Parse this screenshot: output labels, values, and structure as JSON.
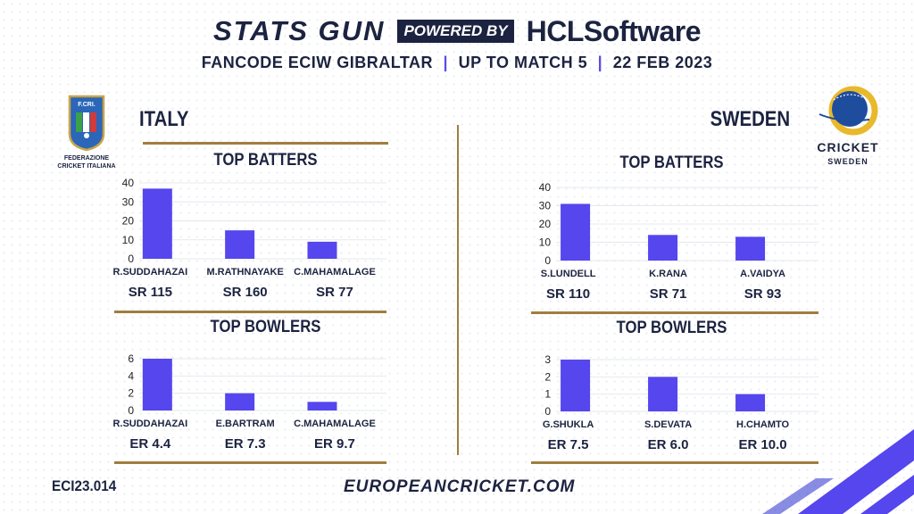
{
  "header": {
    "brand": "STATS GUN",
    "powered_by": "POWERED BY",
    "sponsor": "HCLSoftware",
    "subtitle_parts": [
      "FANCODE ECIW GIBRALTAR",
      "UP TO MATCH  5",
      "22 FEB 2023"
    ],
    "separator": "|"
  },
  "teams": {
    "left": {
      "name": "ITALY",
      "logo_text_1": "F.CRI.",
      "logo_text_2": "FEDERAZIONE",
      "logo_text_3": "CRICKET ITALIANA"
    },
    "right": {
      "name": "SWEDEN",
      "logo_text_1": "CRICKET",
      "logo_text_2": "SWEDEN"
    }
  },
  "sections": {
    "batters_title": "TOP BATTERS",
    "bowlers_title": "TOP BOWLERS"
  },
  "colors": {
    "bar": "#5546ee",
    "gold": "#a07e3e",
    "navy": "#1c2340",
    "grid": "#e6e8ee"
  },
  "chart_data": [
    {
      "type": "bar",
      "team": "ITALY",
      "section": "TOP BATTERS",
      "categories": [
        "R.SUDDAHAZAI",
        "M.RATHNAYAKE",
        "C.MAHAMALAGE"
      ],
      "values": [
        37,
        15,
        9
      ],
      "stat_labels": [
        "SR 115",
        "SR 160",
        "SR 77"
      ],
      "yticks": [
        0,
        10,
        20,
        30,
        40
      ],
      "ylim": [
        0,
        40
      ]
    },
    {
      "type": "bar",
      "team": "ITALY",
      "section": "TOP BOWLERS",
      "categories": [
        "R.SUDDAHAZAI",
        "E.BARTRAM",
        "C.MAHAMALAGE"
      ],
      "values": [
        6,
        2,
        1
      ],
      "stat_labels": [
        "ER 4.4",
        "ER 7.3",
        "ER 9.7"
      ],
      "yticks": [
        0,
        2,
        4,
        6
      ],
      "ylim": [
        0,
        6
      ]
    },
    {
      "type": "bar",
      "team": "SWEDEN",
      "section": "TOP BATTERS",
      "categories": [
        "S.LUNDELL",
        "K.RANA",
        "A.VAIDYA"
      ],
      "values": [
        31,
        14,
        13
      ],
      "stat_labels": [
        "SR 110",
        "SR 71",
        "SR 93"
      ],
      "yticks": [
        0,
        10,
        20,
        30,
        40
      ],
      "ylim": [
        0,
        40
      ]
    },
    {
      "type": "bar",
      "team": "SWEDEN",
      "section": "TOP BOWLERS",
      "categories": [
        "G.SHUKLA",
        "S.DEVATA",
        "H.CHAMTO"
      ],
      "values": [
        3,
        2,
        1
      ],
      "stat_labels": [
        "ER 7.5",
        "ER 6.0",
        "ER 10.0"
      ],
      "yticks": [
        0,
        1,
        2,
        3
      ],
      "ylim": [
        0,
        3
      ]
    }
  ],
  "footer": {
    "code": "ECI23.014",
    "website": "EUROPEANCRICKET.COM"
  }
}
